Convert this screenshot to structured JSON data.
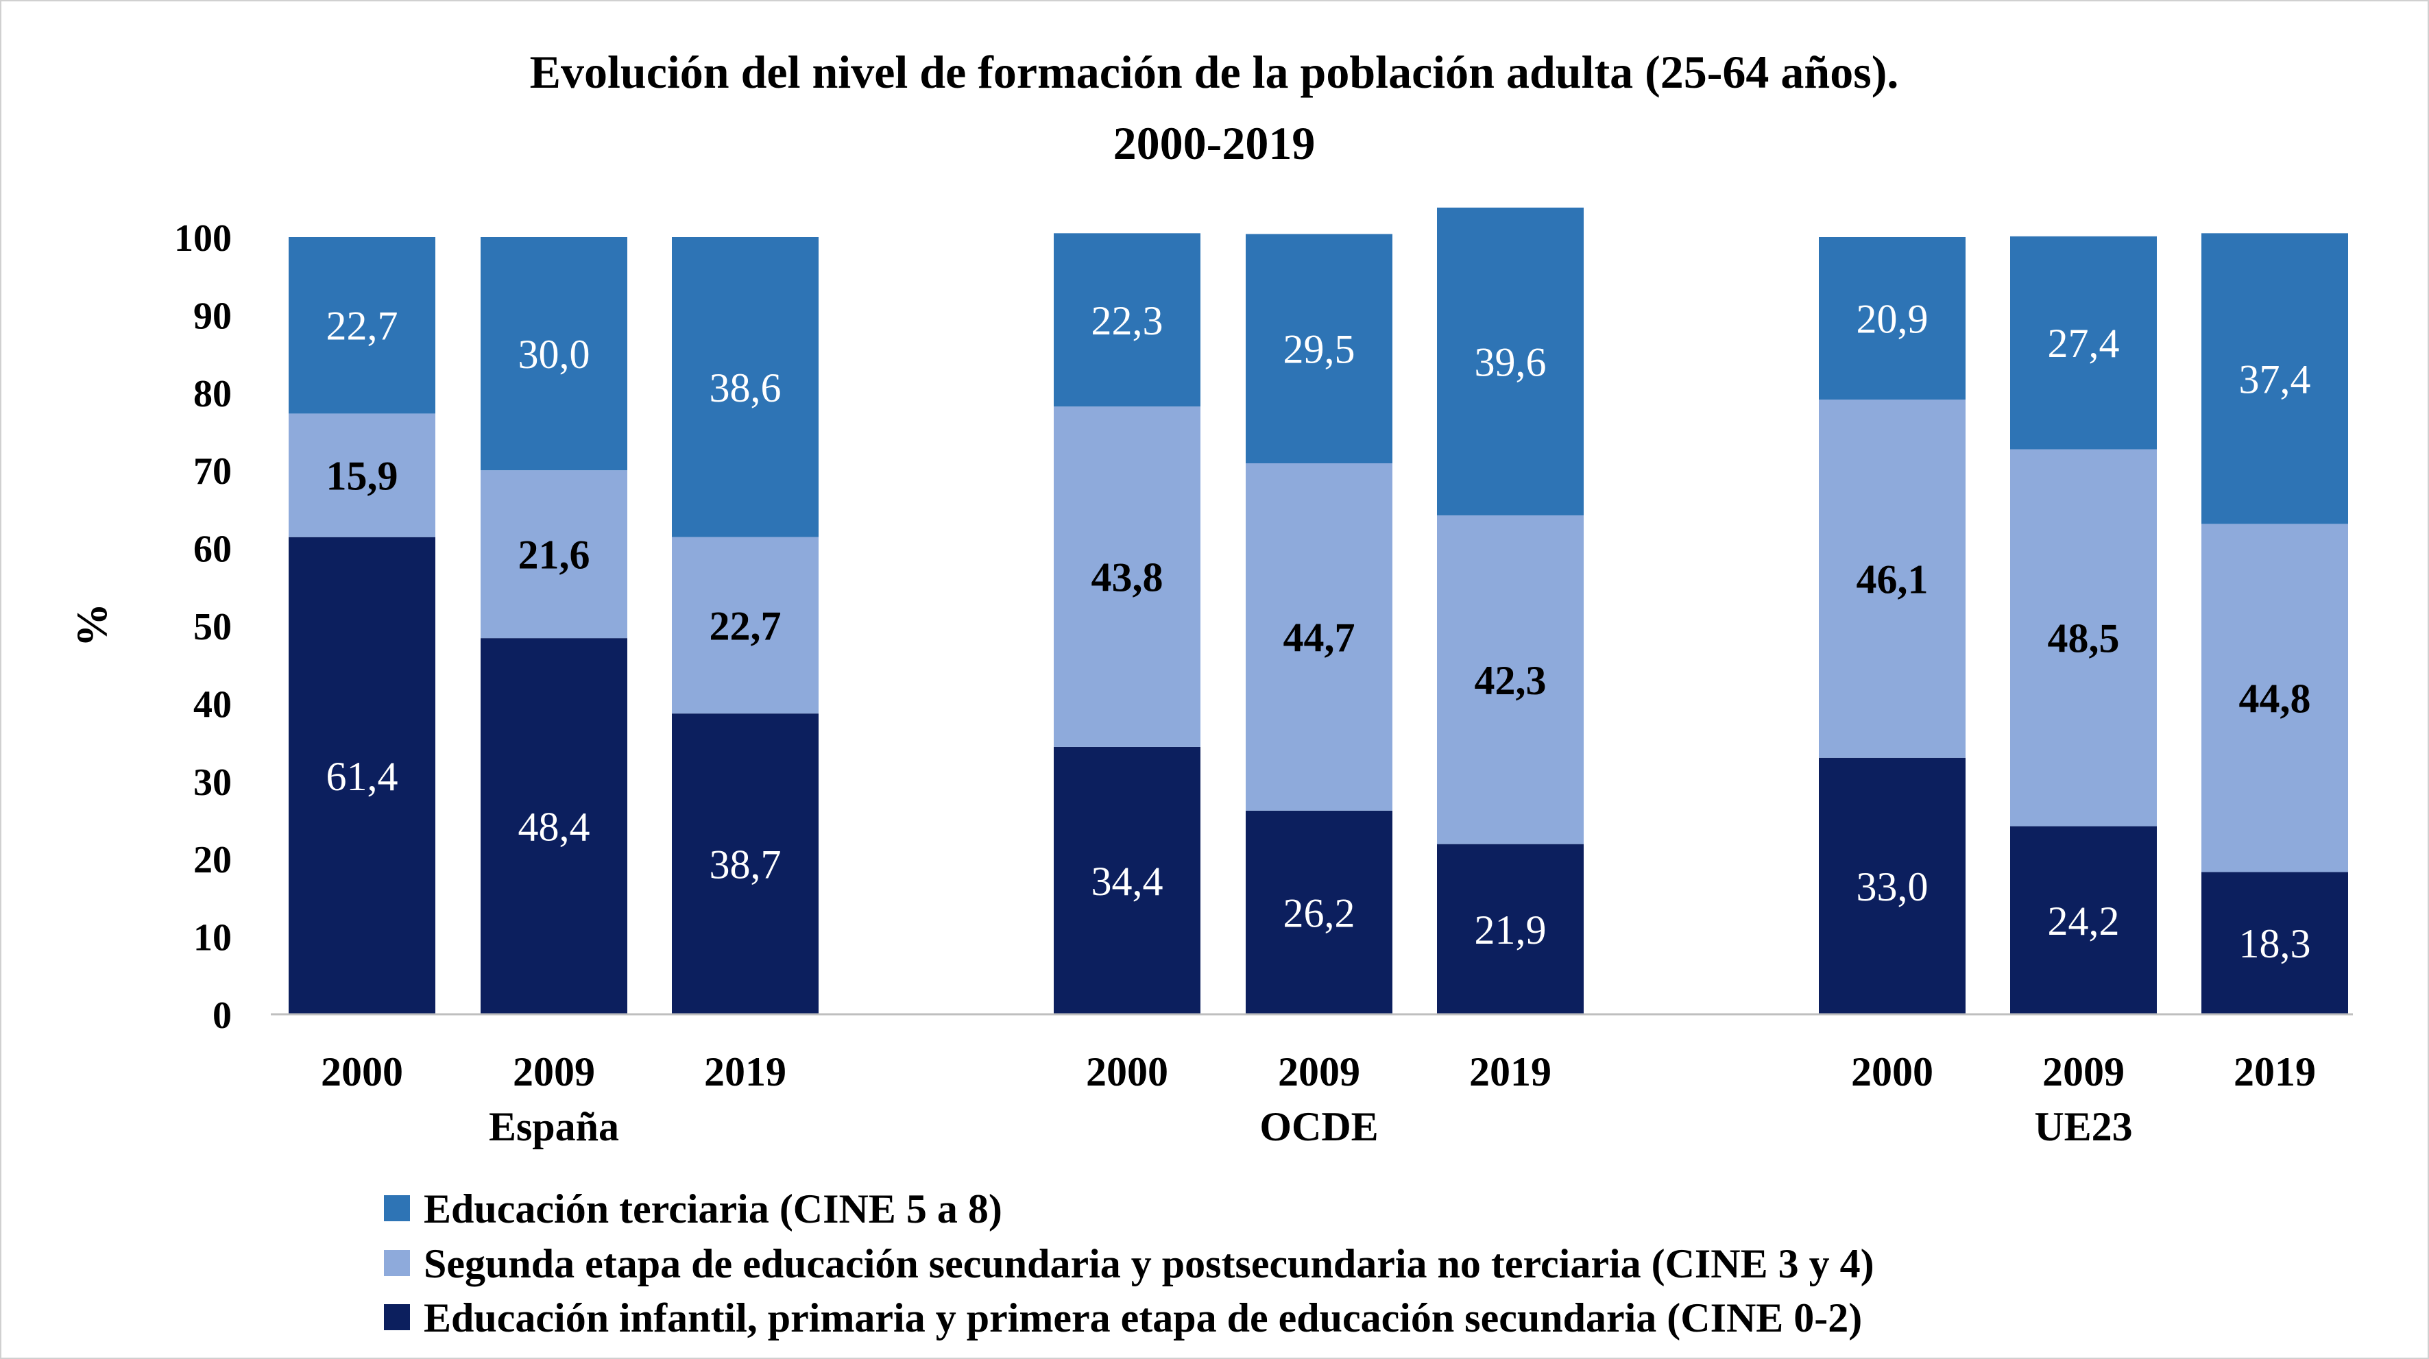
{
  "chart_data": {
    "type": "bar",
    "stacked": true,
    "title": [
      "Evolución del nivel de formación de la población adulta (25-64 años).",
      "2000-2019"
    ],
    "ylabel": "%",
    "xlabel": "",
    "ylim": [
      0,
      100
    ],
    "yticks": [
      0,
      10,
      20,
      30,
      40,
      50,
      60,
      70,
      80,
      90,
      100
    ],
    "grid": false,
    "legend_position": "bottom",
    "groups": [
      {
        "name": "España",
        "years": [
          "2000",
          "2009",
          "2019"
        ]
      },
      {
        "name": "OCDE",
        "years": [
          "2000",
          "2009",
          "2019"
        ]
      },
      {
        "name": "UE23",
        "years": [
          "2000",
          "2009",
          "2019"
        ]
      }
    ],
    "series": [
      {
        "name": "Educación infantil, primaria y primera etapa de educación secundaria (CINE 0-2)",
        "color": "#0c1f5e",
        "label_color": "#ffffff",
        "label_weight": "normal",
        "values": [
          61.4,
          48.4,
          38.7,
          34.4,
          26.2,
          21.9,
          33.0,
          24.2,
          18.3
        ],
        "labels": [
          "61,4",
          "48,4",
          "38,7",
          "34,4",
          "26,2",
          "21,9",
          "33,0",
          "24,2",
          "18,3"
        ]
      },
      {
        "name": "Segunda etapa de educación secundaria y postsecundaria no terciaria (CINE 3 y 4)",
        "color": "#8eaadb",
        "label_color": "#000000",
        "label_weight": "bold",
        "values": [
          15.9,
          21.6,
          22.7,
          43.8,
          44.7,
          42.3,
          46.1,
          48.5,
          44.8
        ],
        "labels": [
          "15,9",
          "21,6",
          "22,7",
          "43,8",
          "44,7",
          "42,3",
          "46,1",
          "48,5",
          "44,8"
        ]
      },
      {
        "name": "Educación terciaria (CINE 5 a 8)",
        "color": "#2e74b5",
        "label_color": "#ffffff",
        "label_weight": "normal",
        "values": [
          22.7,
          30.0,
          38.6,
          22.3,
          29.5,
          39.6,
          20.9,
          27.4,
          37.4
        ],
        "labels": [
          "22,7",
          "30,0",
          "38,6",
          "22,3",
          "29,5",
          "39,6",
          "20,9",
          "27,4",
          "37,4"
        ]
      }
    ],
    "legend_order": [
      2,
      1,
      0
    ]
  }
}
